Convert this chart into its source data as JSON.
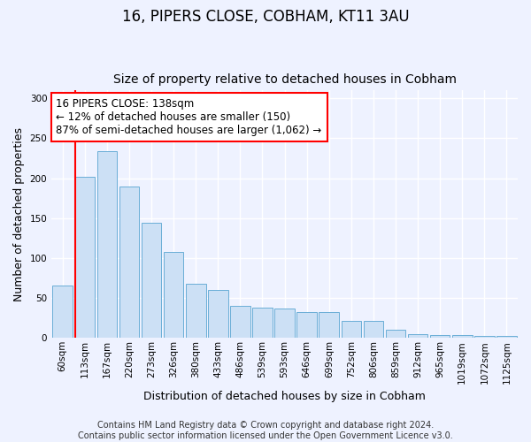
{
  "title": "16, PIPERS CLOSE, COBHAM, KT11 3AU",
  "subtitle": "Size of property relative to detached houses in Cobham",
  "xlabel": "Distribution of detached houses by size in Cobham",
  "ylabel": "Number of detached properties",
  "categories": [
    "60sqm",
    "113sqm",
    "167sqm",
    "220sqm",
    "273sqm",
    "326sqm",
    "380sqm",
    "433sqm",
    "486sqm",
    "539sqm",
    "593sqm",
    "646sqm",
    "699sqm",
    "752sqm",
    "806sqm",
    "859sqm",
    "912sqm",
    "965sqm",
    "1019sqm",
    "1072sqm",
    "1125sqm"
  ],
  "values": [
    65,
    202,
    234,
    190,
    144,
    108,
    68,
    60,
    40,
    38,
    37,
    32,
    32,
    21,
    21,
    10,
    5,
    4,
    4,
    2,
    2
  ],
  "bar_color": "#cce0f5",
  "bar_edge_color": "#6aaed6",
  "vline_color": "red",
  "annotation_text": "16 PIPERS CLOSE: 138sqm\n← 12% of detached houses are smaller (150)\n87% of semi-detached houses are larger (1,062) →",
  "annotation_box_color": "white",
  "annotation_box_edge": "red",
  "ylim": [
    0,
    310
  ],
  "yticks": [
    0,
    50,
    100,
    150,
    200,
    250,
    300
  ],
  "bg_color": "#eef2ff",
  "grid_color": "white",
  "footer": "Contains HM Land Registry data © Crown copyright and database right 2024.\nContains public sector information licensed under the Open Government Licence v3.0.",
  "title_fontsize": 12,
  "subtitle_fontsize": 10,
  "axis_label_fontsize": 9,
  "tick_fontsize": 7.5,
  "annotation_fontsize": 8.5,
  "footer_fontsize": 7
}
